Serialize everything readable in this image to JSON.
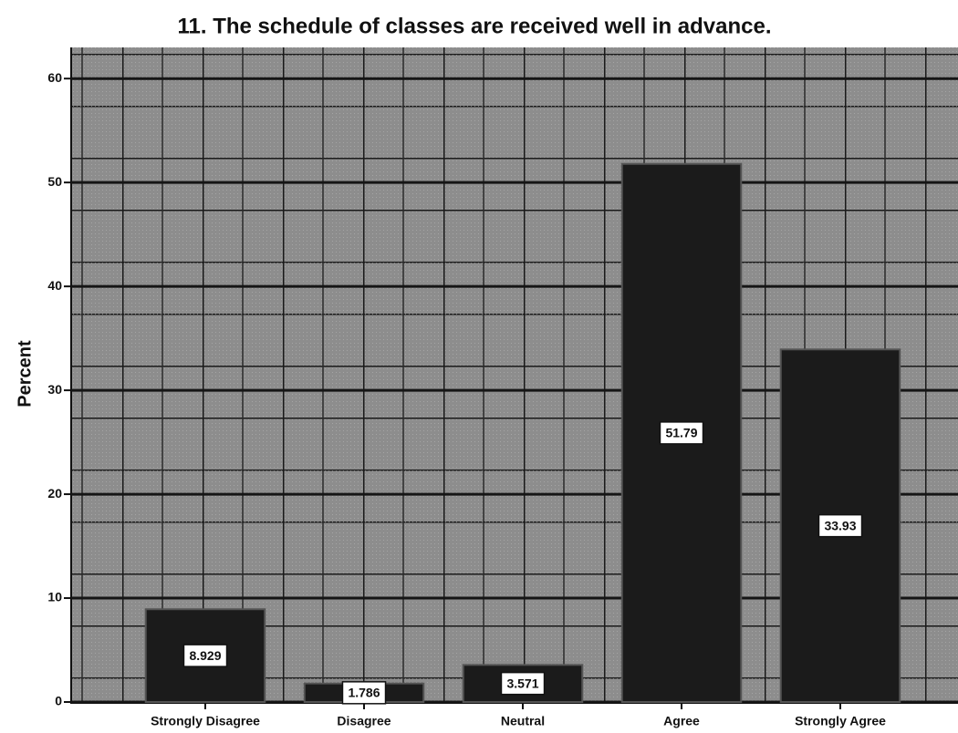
{
  "chart_data": {
    "type": "bar",
    "title": "11. The schedule of classes are received well in advance.",
    "y_label": "Percent",
    "categories": [
      "Strongly Disagree",
      "Disagree",
      "Neutral",
      "Agree",
      "Strongly Agree"
    ],
    "values": [
      8.929,
      1.786,
      3.571,
      51.79,
      33.93
    ],
    "color": "#1b1b1b",
    "ylim": [
      0,
      63
    ],
    "yticks": [
      0,
      10,
      20,
      30,
      40,
      50,
      60
    ],
    "grid": true
  }
}
